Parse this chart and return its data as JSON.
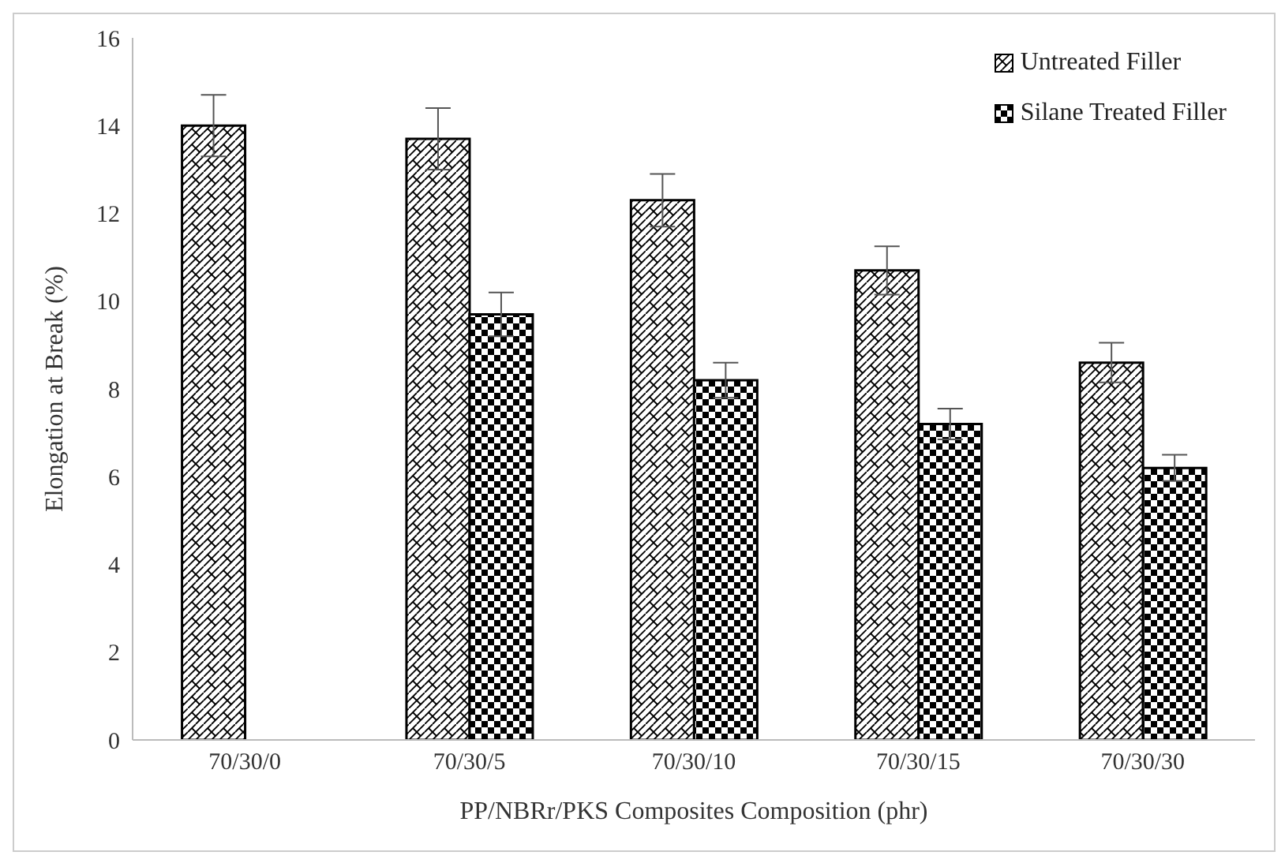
{
  "chart_data": {
    "type": "bar",
    "xlabel": "PP/NBRr/PKS Composites Composition (phr)",
    "ylabel": "Elongation at Break (%)",
    "categories": [
      "70/30/0",
      "70/30/5",
      "70/30/10",
      "70/30/15",
      "70/30/30"
    ],
    "series": [
      {
        "name": "Untreated Filler",
        "color": "#000000",
        "values": [
          14.0,
          13.7,
          12.3,
          10.7,
          8.6
        ],
        "errors": [
          0.7,
          0.7,
          0.6,
          0.55,
          0.45
        ]
      },
      {
        "name": "Silane Treated Filler",
        "color": "#000000",
        "values": [
          null,
          9.7,
          8.2,
          7.2,
          6.2
        ],
        "errors": [
          null,
          0.5,
          0.4,
          0.35,
          0.3
        ]
      }
    ],
    "ylim": [
      0,
      16
    ],
    "yticks": [
      0,
      2,
      4,
      6,
      8,
      10,
      12,
      14,
      16
    ],
    "legend": "top right"
  }
}
